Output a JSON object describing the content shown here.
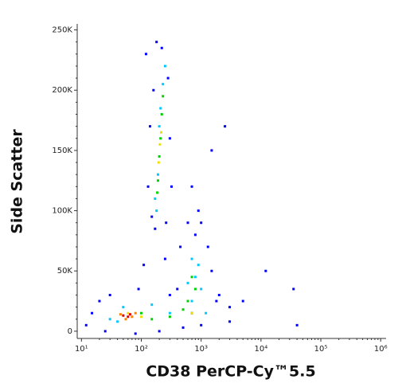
{
  "chart_data": {
    "type": "scatter",
    "x_label": "CD38 PerCP-Cy™5.5",
    "y_label": "Side Scatter",
    "xscale": "log",
    "xlim": [
      8.5,
      1230000
    ],
    "ylim": [
      -6000,
      255000
    ],
    "xticks": [
      {
        "value": 10,
        "label": "10¹"
      },
      {
        "value": 100,
        "label": "10²"
      },
      {
        "value": 1000,
        "label": "10³"
      },
      {
        "value": 10000,
        "label": "10⁴"
      },
      {
        "value": 100000,
        "label": "10⁵"
      },
      {
        "value": 1000000,
        "label": "10⁶"
      }
    ],
    "yticks": [
      0,
      {
        "value": 50000,
        "label": "50K"
      },
      {
        "value": 100000,
        "label": "100K"
      },
      {
        "value": 150000,
        "label": "150K"
      },
      {
        "value": 200000,
        "label": "200K"
      },
      {
        "value": 250000,
        "label": "250K"
      }
    ],
    "series": [
      {
        "color": "#0000ff",
        "x": [
          120,
          180,
          220,
          160,
          280,
          140,
          300,
          130,
          320,
          150,
          260,
          170,
          700,
          1500,
          2500,
          600,
          900,
          450,
          1300,
          1500,
          400,
          2000,
          3000,
          5000,
          12000,
          40000,
          35000,
          15,
          12,
          20,
          30,
          25,
          80,
          200,
          500,
          1000,
          3000,
          110,
          250,
          90,
          700,
          300,
          1800,
          800,
          1000
        ],
        "values": [
          230000,
          240000,
          235000,
          200000,
          210000,
          170000,
          160000,
          120000,
          120000,
          95000,
          90000,
          85000,
          120000,
          150000,
          170000,
          90000,
          100000,
          70000,
          70000,
          50000,
          35000,
          30000,
          20000,
          25000,
          50000,
          5000,
          35000,
          15000,
          5000,
          25000,
          30000,
          0,
          -2000,
          0,
          3000,
          5000,
          8000,
          55000,
          60000,
          35000,
          15000,
          30000,
          25000,
          80000,
          90000
        ]
      },
      {
        "color": "#00c8ff",
        "x": [
          170,
          190,
          210,
          230,
          180,
          250,
          200,
          700,
          800,
          600,
          1000,
          900,
          50,
          30,
          150,
          300,
          700,
          1200,
          40
        ],
        "values": [
          110000,
          130000,
          185000,
          205000,
          100000,
          220000,
          170000,
          60000,
          45000,
          40000,
          35000,
          55000,
          20000,
          10000,
          22000,
          15000,
          25000,
          15000,
          8000
        ]
      },
      {
        "color": "#00d000",
        "x": [
          190,
          200,
          210,
          220,
          185,
          230,
          700,
          800,
          600,
          100,
          150,
          300,
          500
        ],
        "values": [
          125000,
          145000,
          160000,
          180000,
          115000,
          195000,
          45000,
          35000,
          25000,
          15000,
          10000,
          12000,
          18000
        ]
      },
      {
        "color": "#f0e000",
        "x": [
          195,
          205,
          215,
          60,
          100,
          700
        ],
        "values": [
          140000,
          155000,
          165000,
          15000,
          12000,
          15000
        ]
      },
      {
        "color": "#ff8000",
        "x": [
          45,
          70,
          55,
          80
        ],
        "values": [
          14000,
          12000,
          10000,
          15000
        ]
      },
      {
        "color": "#e00000",
        "x": [
          50,
          60,
          65
        ],
        "values": [
          13000,
          12000,
          14000
        ]
      }
    ]
  }
}
